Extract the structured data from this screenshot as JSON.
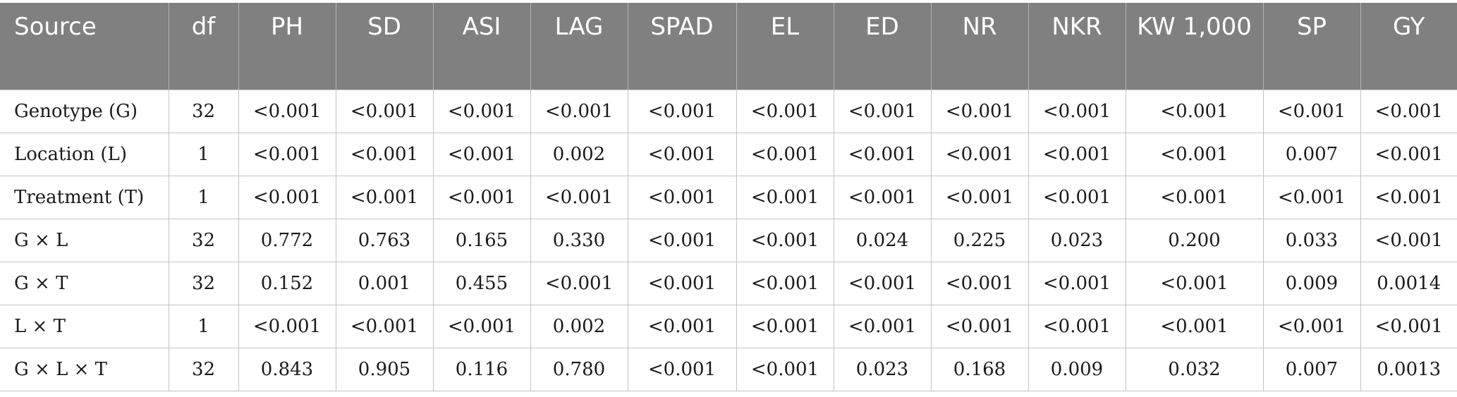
{
  "table": {
    "headers": [
      "Source",
      "df",
      "PH",
      "SD",
      "ASI",
      "LAG",
      "SPAD",
      "EL",
      "ED",
      "NR",
      "NKR",
      "KW 1,000",
      "SP",
      "GY"
    ],
    "rows": [
      [
        "Genotype (G)",
        "32",
        "<0.001",
        "<0.001",
        "<0.001",
        "<0.001",
        "<0.001",
        "<0.001",
        "<0.001",
        "<0.001",
        "<0.001",
        "<0.001",
        "<0.001",
        "<0.001"
      ],
      [
        "Location (L)",
        "1",
        "<0.001",
        "<0.001",
        "<0.001",
        "0.002",
        "<0.001",
        "<0.001",
        "<0.001",
        "<0.001",
        "<0.001",
        "<0.001",
        "0.007",
        "<0.001"
      ],
      [
        "Treatment (T)",
        "1",
        "<0.001",
        "<0.001",
        "<0.001",
        "<0.001",
        "<0.001",
        "<0.001",
        "<0.001",
        "<0.001",
        "<0.001",
        "<0.001",
        "<0.001",
        "<0.001"
      ],
      [
        "G × L",
        "32",
        "0.772",
        "0.763",
        "0.165",
        "0.330",
        "<0.001",
        "<0.001",
        "0.024",
        "0.225",
        "0.023",
        "0.200",
        "0.033",
        "<0.001"
      ],
      [
        "G × T",
        "32",
        "0.152",
        "0.001",
        "0.455",
        "<0.001",
        "<0.001",
        "<0.001",
        "<0.001",
        "<0.001",
        "<0.001",
        "<0.001",
        "0.009",
        "0.0014"
      ],
      [
        "L × T",
        "1",
        "<0.001",
        "<0.001",
        "<0.001",
        "0.002",
        "<0.001",
        "<0.001",
        "<0.001",
        "<0.001",
        "<0.001",
        "<0.001",
        "<0.001",
        "<0.001"
      ],
      [
        "G × L × T",
        "32",
        "0.843",
        "0.905",
        "0.116",
        "0.780",
        "<0.001",
        "<0.001",
        "0.023",
        "0.168",
        "0.009",
        "0.032",
        "0.007",
        "0.0013"
      ]
    ]
  }
}
